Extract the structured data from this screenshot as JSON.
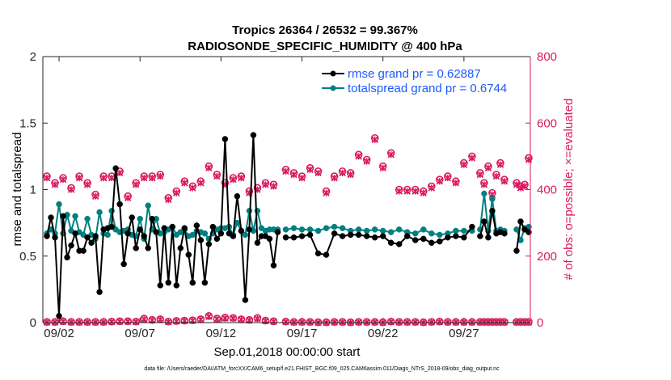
{
  "chart_data": {
    "type": "line",
    "title_line1": "Tropics 26364 / 26532 = 99.367%",
    "title_line2": "RADIOSONDE_SPECIFIC_HUMIDITY @ 400 hPa",
    "ylabel_left": "rmse and totalspread",
    "ylabel_right": "# of obs: o=possible; ×=evaluated",
    "xlabel": "Sep.01,2018 00:00:00 start",
    "footer": "data file: /Users/raeder/DAI/ATM_forcXX/CAM6_setup/f.e21.FHIST_BGC.f09_025.CAM6assim.011/Diags_NTrS_2018-09/obs_diag_output.nc",
    "xlim": [
      1,
      31.1
    ],
    "ylim_left": [
      0,
      2
    ],
    "ylim_right": [
      0,
      800
    ],
    "yticks_left": [
      0,
      0.5,
      1,
      1.5,
      2
    ],
    "yticks_left_labels": [
      "0",
      "0.5",
      "1",
      "1.5",
      "2"
    ],
    "yticks_right": [
      0,
      200,
      400,
      600,
      800
    ],
    "yticks_right_labels": [
      "0",
      "200",
      "400",
      "600",
      "800"
    ],
    "xticks": [
      2,
      7,
      12,
      17,
      22,
      27
    ],
    "xtick_labels": [
      "09/02",
      "09/07",
      "09/12",
      "09/17",
      "09/22",
      "09/27"
    ],
    "colors": {
      "rmse": "#000000",
      "spread": "#00807f",
      "obs": "#d81b60",
      "legend_text": "#1a5aff",
      "right_axis": "#d81b60"
    },
    "series": [
      {
        "name": "rmse grand pr = 0.62887",
        "segments": [
          {
            "x": [
              1.25,
              1.5,
              1.75,
              2,
              2.25,
              2.5,
              2.75,
              3,
              3.25,
              3.5,
              3.75,
              4,
              4.25,
              4.5,
              4.75,
              5,
              5.25,
              5.5,
              5.75,
              6,
              6.25,
              6.5,
              6.75,
              7,
              7.25,
              7.5,
              7.75,
              8,
              8.25,
              8.5,
              8.75,
              9,
              9.25,
              9.5,
              9.75,
              10,
              10.25,
              10.5,
              10.75,
              11,
              11.25,
              11.5,
              11.75,
              12,
              12.25,
              12.5,
              12.75,
              13,
              13.25,
              13.5,
              13.75,
              14,
              14.25,
              14.5,
              14.75,
              15,
              15.25,
              15.5
            ],
            "y": [
              0.65,
              0.79,
              0.64,
              0.05,
              0.8,
              0.49,
              0.58,
              0.67,
              0.54,
              0.54,
              0.64,
              0.6,
              0.65,
              0.23,
              0.7,
              0.71,
              0.72,
              1.16,
              0.89,
              0.44,
              0.67,
              0.79,
              0.56,
              0.7,
              0.65,
              0.56,
              0.78,
              0.68,
              0.28,
              0.71,
              0.3,
              0.72,
              0.28,
              0.56,
              0.71,
              0.51,
              0.3,
              0.73,
              0.62,
              0.3,
              0.59,
              0.72,
              0.63,
              0.67,
              1.38,
              0.67,
              0.65,
              0.95,
              0.69,
              0.17,
              0.7,
              1.41,
              0.6,
              0.65,
              0.65,
              0.63,
              0.43,
              0.68
            ]
          },
          {
            "x": [
              16,
              16.5,
              17,
              17.5,
              18,
              18.5,
              19,
              19.5,
              20,
              20.5,
              21,
              21.5,
              22,
              22.5,
              23,
              23.5,
              24,
              24.5,
              25,
              25.5,
              26,
              26.5,
              27,
              27.5
            ],
            "y": [
              0.64,
              0.64,
              0.65,
              0.66,
              0.52,
              0.51,
              0.67,
              0.65,
              0.66,
              0.66,
              0.65,
              0.64,
              0.65,
              0.6,
              0.59,
              0.65,
              0.62,
              0.63,
              0.6,
              0.61,
              0.64,
              0.65,
              0.64,
              0.72
            ]
          },
          {
            "x": [
              28,
              28.25,
              28.5,
              28.75,
              29,
              29.25,
              29.5
            ],
            "y": [
              0.65,
              0.76,
              0.64,
              0.84,
              0.67,
              0.68,
              0.67
            ]
          },
          {
            "x": [
              30.25,
              30.5,
              30.75,
              31
            ],
            "y": [
              0.54,
              0.76,
              0.7,
              0.68
            ]
          }
        ]
      },
      {
        "name": "totalspread grand pr = 0.6744",
        "segments": [
          {
            "x": [
              1.25,
              1.5,
              1.75,
              2,
              2.25,
              2.5,
              2.75,
              3,
              3.25,
              3.5,
              3.75,
              4,
              4.25,
              4.5,
              4.75,
              5,
              5.25,
              5.5,
              5.75,
              6,
              6.25,
              6.5,
              6.75,
              7,
              7.25,
              7.5,
              7.75,
              8,
              8.25,
              8.5,
              8.75,
              9,
              9.25,
              9.5,
              9.75,
              10,
              10.25,
              10.5,
              10.75,
              11,
              11.25,
              11.5,
              11.75,
              12,
              12.25,
              12.5,
              12.75,
              13,
              13.25,
              13.5,
              13.75,
              14,
              14.25,
              14.5,
              14.75,
              15,
              15.25,
              15.5
            ],
            "y": [
              0.67,
              0.7,
              0.67,
              0.89,
              0.67,
              0.81,
              0.69,
              0.8,
              0.68,
              0.66,
              0.78,
              0.66,
              0.63,
              0.83,
              0.67,
              0.66,
              0.84,
              0.7,
              0.68,
              0.69,
              0.7,
              0.66,
              0.65,
              0.78,
              0.63,
              0.88,
              0.7,
              0.78,
              0.67,
              0.68,
              0.7,
              0.72,
              0.66,
              0.68,
              0.7,
              0.65,
              0.66,
              0.69,
              0.68,
              0.67,
              0.63,
              0.67,
              0.7,
              0.71,
              0.71,
              0.72,
              0.66,
              0.75,
              0.69,
              0.66,
              0.84,
              0.69,
              0.84,
              0.71,
              0.69,
              0.7,
              0.7,
              0.7
            ]
          },
          {
            "x": [
              16,
              16.5,
              17,
              17.5,
              18,
              18.5,
              19,
              19.5,
              20,
              20.5,
              21,
              21.5,
              22,
              22.5,
              23,
              23.5,
              24,
              24.5,
              25,
              25.5,
              26,
              26.5,
              27,
              27.5
            ],
            "y": [
              0.7,
              0.71,
              0.7,
              0.7,
              0.69,
              0.71,
              0.72,
              0.71,
              0.69,
              0.7,
              0.69,
              0.7,
              0.69,
              0.68,
              0.7,
              0.68,
              0.67,
              0.7,
              0.67,
              0.66,
              0.67,
              0.69,
              0.69,
              0.69
            ]
          },
          {
            "x": [
              28,
              28.25,
              28.5,
              28.75,
              29,
              29.25,
              29.5
            ],
            "y": [
              0.7,
              0.97,
              0.69,
              0.93,
              0.69,
              0.7,
              0.69
            ]
          },
          {
            "x": [
              30.25,
              30.5,
              30.75,
              31
            ],
            "y": [
              0.7,
              0.62,
              0.71,
              0.72
            ]
          }
        ]
      }
    ],
    "obs_counts": {
      "x": [
        1.25,
        1.75,
        2.25,
        2.75,
        3.25,
        3.75,
        4.25,
        4.75,
        5.25,
        5.75,
        6.25,
        6.75,
        7.25,
        7.75,
        8.25,
        8.75,
        9.25,
        9.75,
        10.25,
        10.75,
        11.25,
        11.75,
        12.25,
        12.75,
        13.25,
        13.75,
        14.25,
        14.75,
        15.25,
        16,
        16.5,
        17,
        17.5,
        18,
        18.5,
        19,
        19.5,
        20,
        20.5,
        21,
        21.5,
        22,
        22.5,
        23,
        23.5,
        24,
        24.5,
        25,
        25.5,
        26,
        26.5,
        27,
        27.5,
        28,
        28.25,
        28.5,
        28.75,
        29,
        29.25,
        29.5,
        30.25,
        30.5,
        30.75,
        31
      ],
      "possible_high": [
        440,
        420,
        435,
        405,
        440,
        420,
        385,
        440,
        440,
        455,
        380,
        420,
        440,
        440,
        445,
        375,
        395,
        425,
        410,
        425,
        470,
        445,
        420,
        435,
        440,
        395,
        405,
        420,
        415,
        460,
        450,
        440,
        465,
        455,
        395,
        440,
        455,
        450,
        505,
        490,
        555,
        470,
        510,
        400,
        400,
        400,
        395,
        410,
        430,
        440,
        425,
        480,
        500,
        450,
        420,
        470,
        390,
        445,
        480,
        430,
        420,
        410,
        415,
        495
      ],
      "evaluated_high": [
        435,
        415,
        430,
        400,
        435,
        415,
        380,
        435,
        435,
        450,
        375,
        415,
        435,
        435,
        440,
        370,
        390,
        420,
        405,
        420,
        465,
        440,
        415,
        430,
        435,
        390,
        400,
        415,
        410,
        455,
        445,
        435,
        460,
        450,
        390,
        435,
        450,
        445,
        500,
        485,
        550,
        465,
        505,
        395,
        395,
        395,
        390,
        405,
        425,
        435,
        420,
        475,
        495,
        445,
        415,
        465,
        385,
        440,
        475,
        425,
        415,
        405,
        410,
        490
      ],
      "possible_low": [
        2,
        2,
        4,
        2,
        2,
        2,
        2,
        2,
        3,
        4,
        4,
        3,
        12,
        8,
        10,
        3,
        5,
        6,
        7,
        10,
        20,
        12,
        15,
        14,
        10,
        8,
        14,
        6,
        4,
        3,
        2,
        2,
        2,
        1,
        1,
        2,
        2,
        1,
        2,
        2,
        2,
        1,
        3,
        2,
        2,
        2,
        1,
        2,
        3,
        2,
        2,
        2,
        2,
        2,
        2,
        2,
        2,
        2,
        2,
        2,
        2,
        2,
        2,
        2
      ],
      "evaluated_low": [
        1,
        1,
        3,
        1,
        1,
        1,
        1,
        1,
        2,
        3,
        3,
        2,
        10,
        7,
        9,
        2,
        4,
        5,
        6,
        9,
        18,
        11,
        13,
        13,
        9,
        7,
        12,
        5,
        3,
        2,
        1,
        1,
        1,
        0,
        0,
        1,
        1,
        0,
        1,
        1,
        1,
        0,
        2,
        1,
        1,
        1,
        0,
        1,
        2,
        1,
        1,
        1,
        1,
        1,
        1,
        1,
        1,
        1,
        1,
        1,
        1,
        1,
        1,
        1
      ]
    }
  }
}
